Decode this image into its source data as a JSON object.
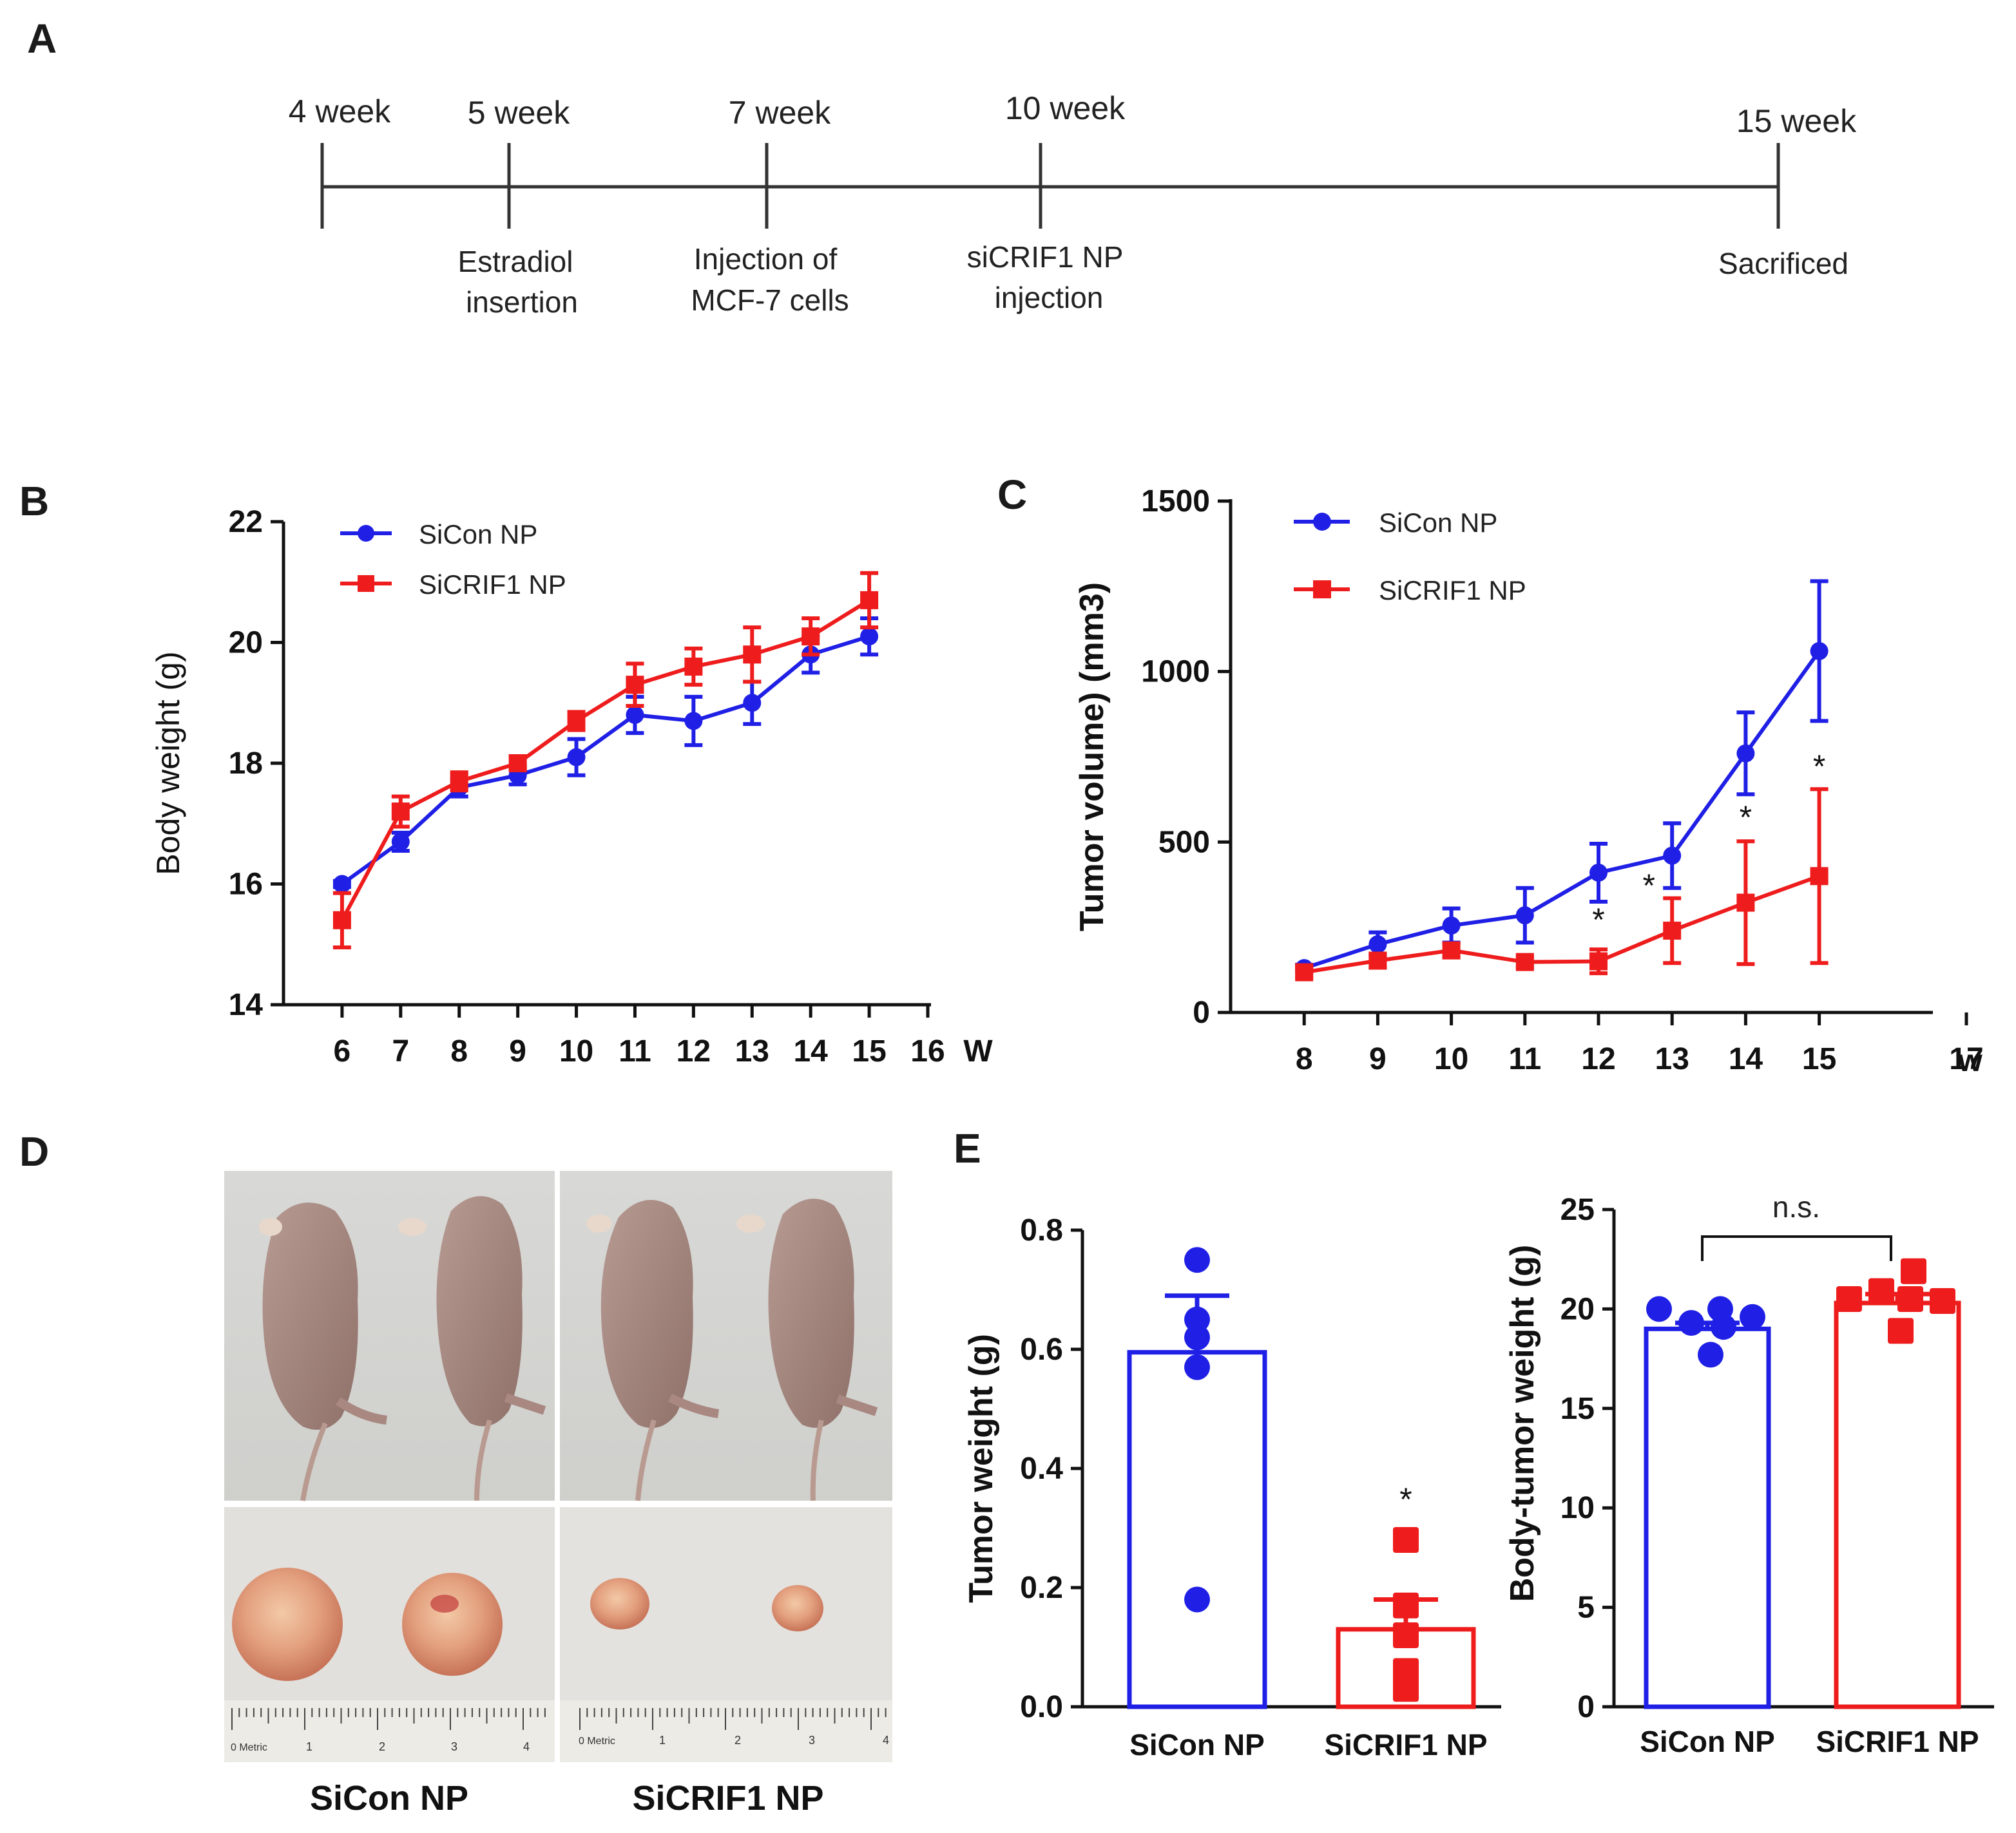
{
  "panels": {
    "A": "A",
    "B": "B",
    "C": "C",
    "D": "D",
    "E": "E"
  },
  "colors": {
    "blue": "#1f1fe6",
    "red": "#ee1c1c",
    "axis": "#111111"
  },
  "timeline": {
    "ticks": [
      {
        "label": "4 week",
        "event_lines": []
      },
      {
        "label": "5 week",
        "event_lines": [
          "Estradiol",
          "insertion"
        ]
      },
      {
        "label": "7 week",
        "event_lines": [
          "Injection of",
          "MCF-7 cells"
        ]
      },
      {
        "label": "10 week",
        "event_lines": [
          "siCRIF1 NP",
          "injection"
        ]
      },
      {
        "label": "15 week",
        "event_lines": [
          "Sacrificed"
        ]
      }
    ]
  },
  "chart_data": [
    {
      "id": "B",
      "type": "line",
      "xlabel": "W",
      "ylabel": "Body weight (g)",
      "ylim": [
        14,
        22
      ],
      "yticks": [
        14,
        16,
        18,
        20,
        22
      ],
      "xlim": [
        5,
        16
      ],
      "xticks": [
        6,
        7,
        8,
        9,
        10,
        11,
        12,
        13,
        14,
        15,
        16
      ],
      "legend": "top-left",
      "series": [
        {
          "name": "SiCon NP",
          "color": "blue",
          "marker": "circle",
          "x": [
            6,
            7,
            8,
            9,
            10,
            11,
            12,
            13,
            14,
            15
          ],
          "y": [
            16.0,
            16.7,
            17.6,
            17.8,
            18.1,
            18.8,
            18.7,
            19.0,
            19.8,
            20.1
          ],
          "err": [
            0.05,
            0.15,
            0.15,
            0.15,
            0.3,
            0.3,
            0.4,
            0.35,
            0.3,
            0.3
          ]
        },
        {
          "name": "SiCRIF1 NP",
          "color": "red",
          "marker": "square",
          "x": [
            6,
            7,
            8,
            9,
            10,
            11,
            12,
            13,
            14,
            15
          ],
          "y": [
            15.4,
            17.2,
            17.7,
            18.0,
            18.7,
            19.3,
            19.6,
            19.8,
            20.1,
            20.7
          ],
          "err": [
            0.45,
            0.25,
            0.15,
            0.1,
            0.15,
            0.35,
            0.3,
            0.45,
            0.3,
            0.45
          ]
        }
      ]
    },
    {
      "id": "C",
      "type": "line",
      "xlabel": "W",
      "ylabel": "Tumor volume) (mm3)",
      "ylim": [
        0,
        1500
      ],
      "yticks": [
        0,
        500,
        1000,
        1500
      ],
      "xlim": [
        7,
        17
      ],
      "xticks": [
        8,
        9,
        10,
        11,
        12,
        13,
        14,
        15,
        17
      ],
      "legend": "top-left",
      "significance": [
        {
          "x": 12,
          "y": 240,
          "label": "*"
        },
        {
          "x": 13,
          "y": 340,
          "label": "*"
        },
        {
          "x": 14,
          "y": 540,
          "label": "*"
        },
        {
          "x": 15,
          "y": 690,
          "label": "*"
        }
      ],
      "series": [
        {
          "name": "SiCon NP",
          "color": "blue",
          "marker": "circle",
          "x": [
            8,
            9,
            10,
            11,
            12,
            13,
            14,
            15
          ],
          "y": [
            130,
            200,
            255,
            285,
            410,
            460,
            760,
            1060
          ],
          "err": [
            10,
            35,
            50,
            80,
            85,
            95,
            120,
            205
          ]
        },
        {
          "name": "SiCRIF1 NP",
          "color": "red",
          "marker": "square",
          "x": [
            8,
            9,
            10,
            11,
            12,
            13,
            14,
            15
          ],
          "y": [
            118,
            152,
            182,
            148,
            150,
            240,
            322,
            400
          ],
          "err": [
            15,
            20,
            20,
            15,
            35,
            95,
            180,
            255
          ]
        }
      ]
    },
    {
      "id": "E-left",
      "type": "bar",
      "categories": [
        "SiCon NP",
        "SiCRIF1 NP"
      ],
      "values": [
        0.595,
        0.13
      ],
      "sem": [
        0.095,
        0.05
      ],
      "points": [
        [
          0.75,
          0.65,
          0.62,
          0.57,
          0.18
        ],
        [
          0.28,
          0.17,
          0.12,
          0.06,
          0.03
        ]
      ],
      "colors": [
        "blue",
        "red"
      ],
      "markers": [
        "circle",
        "square"
      ],
      "ylabel": "Tumor weight (g)",
      "ylim": [
        0,
        0.8
      ],
      "yticks": [
        "0.0",
        "0.2",
        "0.4",
        "0.6",
        "0.8"
      ],
      "significance": [
        {
          "category": 1,
          "label": "*"
        }
      ]
    },
    {
      "id": "E-right",
      "type": "bar",
      "categories": [
        "SiCon NP",
        "SiCRIF1 NP"
      ],
      "values": [
        19.0,
        20.3
      ],
      "sem": [
        0.3,
        0.45
      ],
      "points": [
        [
          20.0,
          19.3,
          19.1,
          19.6,
          20.0,
          17.7
        ],
        [
          20.5,
          20.9,
          21.9,
          20.4,
          20.5,
          18.9
        ]
      ],
      "colors": [
        "blue",
        "red"
      ],
      "markers": [
        "circle",
        "square"
      ],
      "ylabel": "Body-tumor weight (g)",
      "ylim": [
        0,
        25
      ],
      "yticks": [
        0,
        5,
        10,
        15,
        20,
        25
      ],
      "comparison": "n.s."
    }
  ],
  "photo": {
    "labels": [
      "SiCon NP",
      "SiCRIF1 NP"
    ],
    "ruler": {
      "text": "0 Metric",
      "numbers": [
        "1",
        "2",
        "3",
        "4"
      ]
    }
  }
}
